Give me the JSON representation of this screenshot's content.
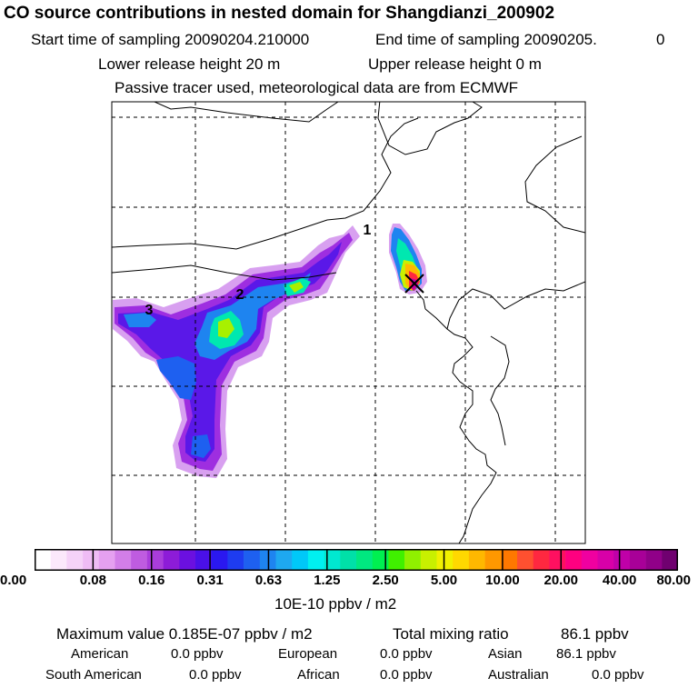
{
  "header": {
    "title": "CO  source contributions in nested domain for Shangdianzi_200902",
    "start_label": "Start time of sampling 20090204.210000",
    "end_label": "End time of sampling 20090205.",
    "end_value": "0",
    "lower_label": "Lower release height   20 m",
    "upper_label": "Upper release height    0 m",
    "tracer_note": "Passive tracer used, meteorological data are from ECMWF"
  },
  "map": {
    "markers": [
      {
        "label": "1"
      },
      {
        "label": "2"
      },
      {
        "label": "3"
      }
    ],
    "receptor": "x-marker"
  },
  "colorbar": {
    "ticks": [
      "0.00",
      "0.08",
      "0.16",
      "0.31",
      "0.63",
      "1.25",
      "2.50",
      "5.00",
      "10.00",
      "20.00",
      "40.00",
      "80.00"
    ],
    "units": "10E-10 ppbv / m2",
    "colors": [
      "#ffffff",
      "#fbe8fb",
      "#f5d2f8",
      "#efbcf5",
      "#e5a0f0",
      "#d27ee8",
      "#bf5ce0",
      "#a93ddb",
      "#8d1cd8",
      "#6b10e0",
      "#4a10e8",
      "#2a18f0",
      "#1e3cf0",
      "#1e60f0",
      "#1e84f0",
      "#1ea8f0",
      "#00c8f8",
      "#00f0f0",
      "#00e8d0",
      "#00e0a8",
      "#00e880",
      "#00f050",
      "#40f000",
      "#90f000",
      "#c8f000",
      "#f0f000",
      "#ffd800",
      "#ffb800",
      "#ff9800",
      "#ff7800",
      "#ff5030",
      "#ff2840",
      "#ff1060",
      "#ff0080",
      "#f000a0",
      "#d800a8",
      "#c000a8",
      "#a80098",
      "#900088",
      "#700070"
    ]
  },
  "stats": {
    "max_label": "Maximum value  0.185E-07 ppbv / m2",
    "total_label": "Total mixing ratio",
    "total_value": "86.1 ppbv",
    "american_label": "American",
    "american_value": "0.0 ppbv",
    "european_label": "European",
    "european_value": "0.0 ppbv",
    "asian_label": "Asian",
    "asian_value": "86.1 ppbv",
    "south_american_label": "South American",
    "south_american_value": "0.0 ppbv",
    "african_label": "African",
    "african_value": "0.0 ppbv",
    "australian_label": "Australian",
    "australian_value": "0.0 ppbv"
  }
}
